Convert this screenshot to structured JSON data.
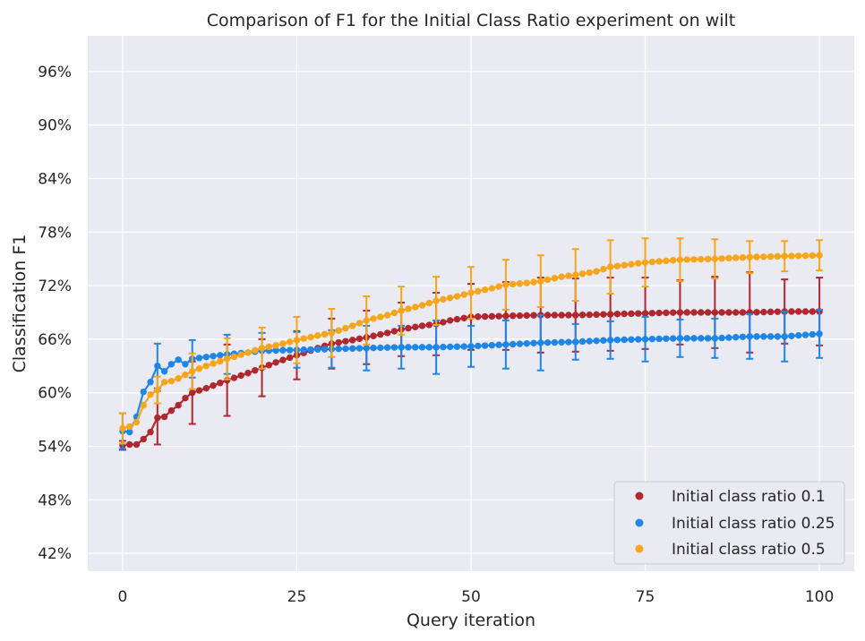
{
  "chart_data": {
    "type": "line",
    "title": "Comparison of F1 for the Initial Class Ratio experiment on wilt",
    "xlabel": "Query iteration",
    "ylabel": "Classification F1",
    "xlim": [
      -5,
      105
    ],
    "ylim": [
      0.4,
      1.0
    ],
    "x_ticks": [
      0,
      25,
      50,
      75,
      100
    ],
    "x_tick_labels": [
      "0",
      "25",
      "50",
      "75",
      "100"
    ],
    "y_ticks": [
      0.42,
      0.48,
      0.54,
      0.6,
      0.66,
      0.72,
      0.78,
      0.84,
      0.9,
      0.96
    ],
    "y_tick_labels": [
      "42%",
      "48%",
      "54%",
      "60%",
      "66%",
      "72%",
      "78%",
      "84%",
      "90%",
      "96%"
    ],
    "grid": true,
    "legend_position": "bottom-right",
    "error_bar_every": 5,
    "series": [
      {
        "name": "Initial class ratio 0.1",
        "color": "#b0272f",
        "anchors": [
          [
            0,
            0.541
          ],
          [
            1,
            0.542
          ],
          [
            2,
            0.542
          ],
          [
            3,
            0.548
          ],
          [
            4,
            0.556
          ],
          [
            5,
            0.572
          ],
          [
            6,
            0.573
          ],
          [
            7,
            0.58
          ],
          [
            8,
            0.586
          ],
          [
            9,
            0.594
          ],
          [
            10,
            0.6
          ],
          [
            12,
            0.605
          ],
          [
            15,
            0.614
          ],
          [
            18,
            0.622
          ],
          [
            20,
            0.628
          ],
          [
            22,
            0.634
          ],
          [
            25,
            0.642
          ],
          [
            28,
            0.65
          ],
          [
            30,
            0.655
          ],
          [
            33,
            0.659
          ],
          [
            35,
            0.662
          ],
          [
            38,
            0.667
          ],
          [
            40,
            0.671
          ],
          [
            43,
            0.675
          ],
          [
            45,
            0.677
          ],
          [
            47,
            0.681
          ],
          [
            50,
            0.685
          ],
          [
            55,
            0.686
          ],
          [
            60,
            0.687
          ],
          [
            65,
            0.687
          ],
          [
            70,
            0.688
          ],
          [
            75,
            0.689
          ],
          [
            80,
            0.69
          ],
          [
            85,
            0.69
          ],
          [
            90,
            0.69
          ],
          [
            95,
            0.691
          ],
          [
            100,
            0.691
          ]
        ],
        "errors": [
          0.005,
          0.03,
          0.035,
          0.04,
          0.032,
          0.027,
          0.028,
          0.03,
          0.03,
          0.035,
          0.037,
          0.038,
          0.042,
          0.041,
          0.041,
          0.04,
          0.036,
          0.04,
          0.045,
          0.036,
          0.038
        ]
      },
      {
        "name": "Initial class ratio 0.25",
        "color": "#1f86e8",
        "anchors": [
          [
            0,
            0.557
          ],
          [
            1,
            0.556
          ],
          [
            2,
            0.573
          ],
          [
            3,
            0.601
          ],
          [
            4,
            0.612
          ],
          [
            5,
            0.63
          ],
          [
            6,
            0.624
          ],
          [
            7,
            0.632
          ],
          [
            8,
            0.637
          ],
          [
            9,
            0.632
          ],
          [
            10,
            0.638
          ],
          [
            12,
            0.64
          ],
          [
            15,
            0.643
          ],
          [
            18,
            0.645
          ],
          [
            20,
            0.647
          ],
          [
            25,
            0.648
          ],
          [
            30,
            0.649
          ],
          [
            35,
            0.65
          ],
          [
            40,
            0.651
          ],
          [
            45,
            0.651
          ],
          [
            50,
            0.652
          ],
          [
            55,
            0.654
          ],
          [
            60,
            0.656
          ],
          [
            65,
            0.657
          ],
          [
            70,
            0.659
          ],
          [
            75,
            0.66
          ],
          [
            80,
            0.661
          ],
          [
            85,
            0.661
          ],
          [
            90,
            0.663
          ],
          [
            95,
            0.663
          ],
          [
            100,
            0.666
          ]
        ],
        "errors": [
          0.02,
          0.025,
          0.021,
          0.022,
          0.02,
          0.02,
          0.021,
          0.025,
          0.024,
          0.03,
          0.023,
          0.027,
          0.031,
          0.02,
          0.021,
          0.025,
          0.021,
          0.022,
          0.025,
          0.028,
          0.027
        ]
      },
      {
        "name": "Initial class ratio 0.5",
        "color": "#f7a51b",
        "anchors": [
          [
            0,
            0.56
          ],
          [
            1,
            0.562
          ],
          [
            2,
            0.567
          ],
          [
            3,
            0.586
          ],
          [
            4,
            0.598
          ],
          [
            5,
            0.603
          ],
          [
            6,
            0.612
          ],
          [
            7,
            0.613
          ],
          [
            8,
            0.616
          ],
          [
            9,
            0.62
          ],
          [
            10,
            0.624
          ],
          [
            12,
            0.63
          ],
          [
            15,
            0.638
          ],
          [
            18,
            0.645
          ],
          [
            20,
            0.65
          ],
          [
            22,
            0.653
          ],
          [
            25,
            0.659
          ],
          [
            28,
            0.664
          ],
          [
            30,
            0.667
          ],
          [
            33,
            0.675
          ],
          [
            35,
            0.681
          ],
          [
            38,
            0.687
          ],
          [
            40,
            0.692
          ],
          [
            43,
            0.698
          ],
          [
            45,
            0.703
          ],
          [
            48,
            0.708
          ],
          [
            50,
            0.712
          ],
          [
            53,
            0.717
          ],
          [
            55,
            0.721
          ],
          [
            58,
            0.723
          ],
          [
            60,
            0.725
          ],
          [
            63,
            0.73
          ],
          [
            65,
            0.732
          ],
          [
            68,
            0.736
          ],
          [
            70,
            0.741
          ],
          [
            75,
            0.746
          ],
          [
            80,
            0.749
          ],
          [
            85,
            0.75
          ],
          [
            90,
            0.752
          ],
          [
            95,
            0.753
          ],
          [
            100,
            0.754
          ]
        ],
        "errors": [
          0.017,
          0.015,
          0.02,
          0.023,
          0.023,
          0.026,
          0.027,
          0.027,
          0.027,
          0.027,
          0.029,
          0.028,
          0.029,
          0.029,
          0.03,
          0.027,
          0.024,
          0.022,
          0.018,
          0.017,
          0.017
        ]
      }
    ]
  }
}
